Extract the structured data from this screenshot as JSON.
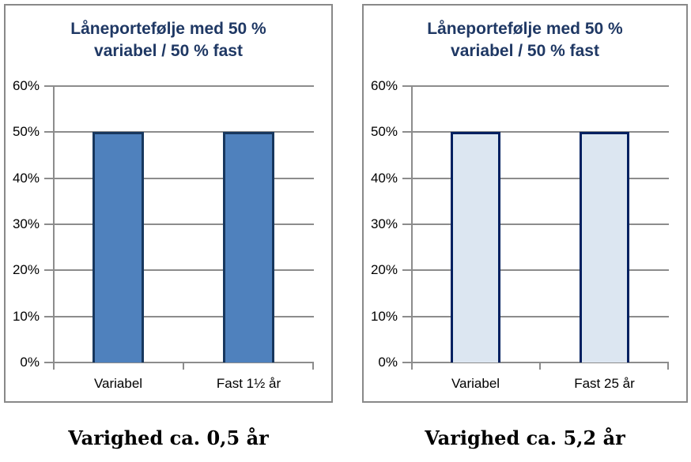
{
  "page": {
    "background": "#ffffff"
  },
  "colors": {
    "chart_border": "#898989",
    "grid": "#8C8C8C",
    "title": "#1F3864",
    "axis_text": "#000000",
    "caption_text": "#000000"
  },
  "chart_data": [
    {
      "type": "bar",
      "title": "Låneportefølje med 50 % variabel / 50 % fast",
      "categories": [
        "Variabel",
        "Fast 1½ år"
      ],
      "values": [
        50,
        50
      ],
      "value_unit": "%",
      "ylim": [
        0,
        60
      ],
      "ytick_step": 10,
      "ytick_labels": [
        "60%",
        "50%",
        "40%",
        "30%",
        "20%",
        "10%",
        "0%"
      ],
      "grid": true,
      "legend": "none",
      "bar_fill": "#4F81BD",
      "bar_border": "#17375E",
      "caption": "Varighed ca. 0,5 år"
    },
    {
      "type": "bar",
      "title": "Låneportefølje med 50 % variabel / 50 % fast",
      "categories": [
        "Variabel",
        "Fast 25 år"
      ],
      "values": [
        50,
        50
      ],
      "value_unit": "%",
      "ylim": [
        0,
        60
      ],
      "ytick_step": 10,
      "ytick_labels": [
        "60%",
        "50%",
        "40%",
        "30%",
        "20%",
        "10%",
        "0%"
      ],
      "grid": true,
      "legend": "none",
      "bar_fill": "#DCE6F1",
      "bar_border": "#002060",
      "caption": "Varighed ca. 5,2 år"
    }
  ]
}
